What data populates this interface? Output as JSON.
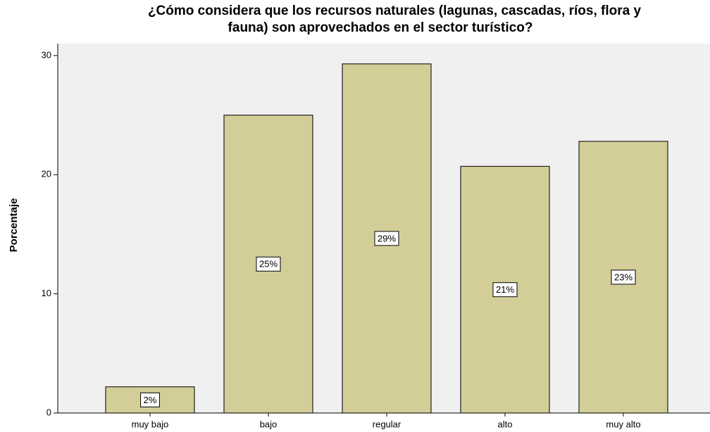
{
  "chart_data": {
    "type": "bar",
    "title": [
      "¿Cómo considera que los recursos naturales (lagunas, cascadas, ríos, flora y",
      "fauna) son aprovechados en el sector turístico?"
    ],
    "ylabel": "Porcentaje",
    "categories": [
      "muy bajo",
      "bajo",
      "regular",
      "alto",
      "muy alto"
    ],
    "values": [
      2.2,
      25.0,
      29.3,
      20.7,
      22.8
    ],
    "value_labels": [
      "2%",
      "25%",
      "29%",
      "21%",
      "23%"
    ],
    "color": "#d3ce97",
    "ylim": [
      0,
      31
    ],
    "yticks": [
      0,
      10,
      20,
      30
    ],
    "grid": false
  }
}
